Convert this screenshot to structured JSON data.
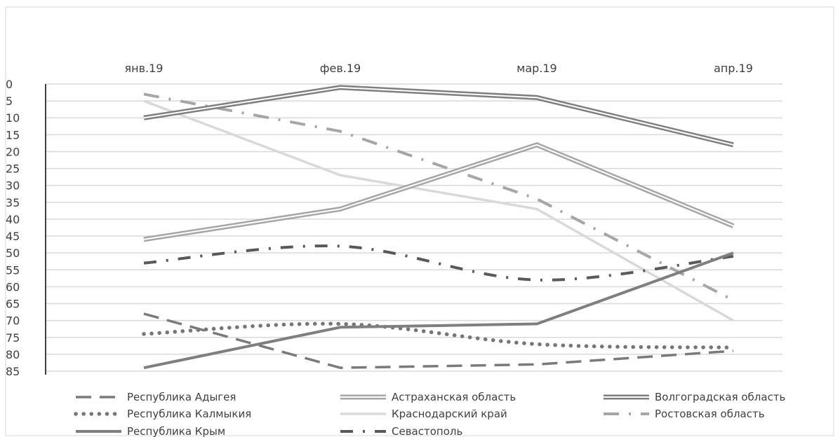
{
  "chart_data": {
    "type": "line",
    "title": "",
    "xlabel": "",
    "ylabel": "",
    "categories": [
      "янв.19",
      "фев.19",
      "мар.19",
      "апр.19"
    ],
    "ylim": [
      0,
      85
    ],
    "y_inverted": true,
    "y_ticks": [
      0,
      5,
      10,
      15,
      20,
      25,
      30,
      35,
      40,
      45,
      50,
      55,
      60,
      65,
      70,
      75,
      80,
      85
    ],
    "x_axis_position": "top",
    "grid": true,
    "legend_position": "bottom",
    "series": [
      {
        "name": "Республика Адыгея",
        "values": [
          68,
          84,
          83,
          79
        ],
        "style": "long-dash",
        "color": "#7a7a7a"
      },
      {
        "name": "Астраханская область",
        "values": [
          46,
          37,
          18,
          42
        ],
        "style": "double-light",
        "color": "#a6a6a6"
      },
      {
        "name": "Волгоградская область",
        "values": [
          10,
          1,
          4,
          18
        ],
        "style": "double-dark",
        "color": "#7f7f7f"
      },
      {
        "name": "Республика Калмыкия",
        "values": [
          74,
          71,
          77,
          78
        ],
        "style": "dotted",
        "color": "#767676"
      },
      {
        "name": "Краснодарский край",
        "values": [
          5,
          27,
          37,
          70
        ],
        "style": "solid-light",
        "color": "#d9d9d9"
      },
      {
        "name": "Ростовская область",
        "values": [
          3,
          14,
          34,
          64
        ],
        "style": "dash-dot-light",
        "color": "#a6a6a6"
      },
      {
        "name": "Республика Крым",
        "values": [
          84,
          72,
          71,
          50
        ],
        "style": "solid-dark",
        "color": "#7f7f7f"
      },
      {
        "name": "Севастополь",
        "values": [
          53,
          48,
          58,
          51
        ],
        "style": "dash-dot-dark",
        "color": "#595959"
      }
    ]
  }
}
